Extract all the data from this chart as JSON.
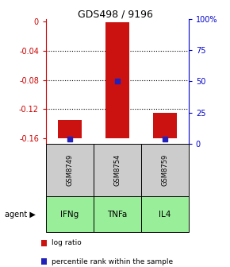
{
  "title": "GDS498 / 9196",
  "samples": [
    "GSM8749",
    "GSM8754",
    "GSM8759"
  ],
  "agents": [
    "IFNg",
    "TNFa",
    "IL4"
  ],
  "log_ratios": [
    -0.135,
    -0.001,
    -0.125
  ],
  "log_ratio_base": -0.16,
  "percentile_ranks": [
    4,
    50,
    4
  ],
  "ylim": [
    -0.168,
    0.004
  ],
  "left_yticks": [
    0,
    -0.04,
    -0.08,
    -0.12,
    -0.16
  ],
  "right_yticks": [
    0,
    25,
    50,
    75,
    100
  ],
  "right_yticklabels": [
    "0",
    "25",
    "50",
    "75",
    "100%"
  ],
  "bar_color": "#cc1111",
  "percentile_color": "#2222bb",
  "sample_box_color": "#cccccc",
  "agent_box_color": "#99ee99",
  "bar_width": 0.5,
  "legend_red_label": "log ratio",
  "legend_blue_label": "percentile rank within the sample",
  "left_axis_color": "#cc0000",
  "right_axis_color": "#0000cc",
  "grid_yticks": [
    -0.04,
    -0.08,
    -0.12
  ]
}
